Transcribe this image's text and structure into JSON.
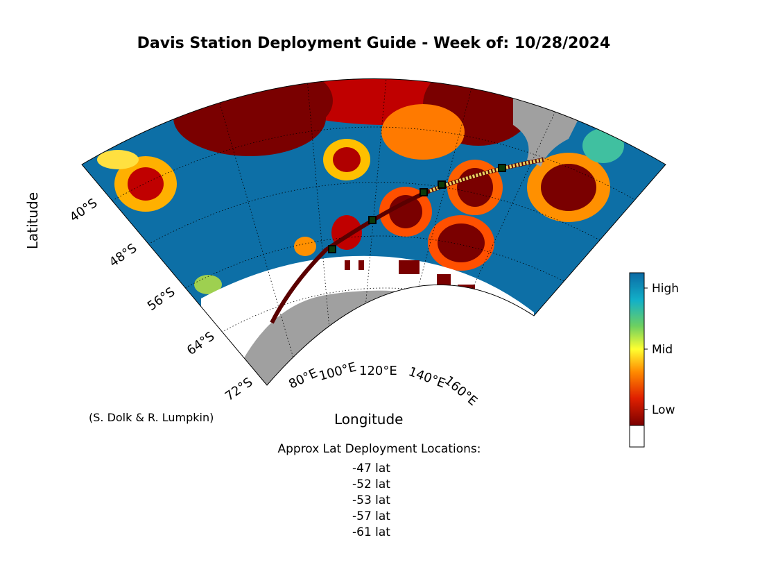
{
  "title": "Davis Station Deployment Guide - Week of: 10/28/2024",
  "axes": {
    "ylabel": "Latitude",
    "xlabel": "Longitude",
    "lat_ticks": [
      "40°S",
      "48°S",
      "56°S",
      "64°S",
      "72°S"
    ],
    "lon_ticks": [
      "80°E",
      "100°E",
      "120°E",
      "140°E",
      "160°E"
    ]
  },
  "credit": "(S. Dolk & R. Lumpkin)",
  "colorbar": {
    "labels": [
      "High",
      "Mid",
      "Low"
    ]
  },
  "deployment": {
    "heading": "Approx Lat Deployment Locations:",
    "locations": [
      "-47 lat",
      "-52 lat",
      "-53 lat",
      "-57 lat",
      "-61 lat"
    ]
  },
  "colors": {
    "high": "#0d6fa6",
    "low": "#7a0000",
    "land": "#a0a0a0",
    "ice": "#ffffff"
  }
}
